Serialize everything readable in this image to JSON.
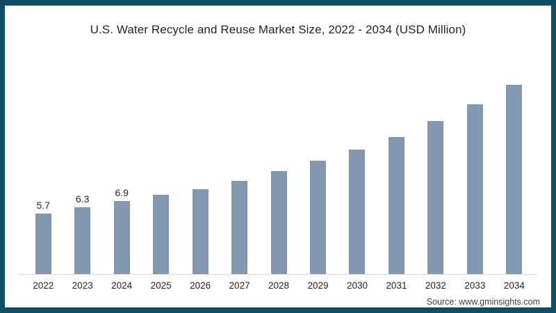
{
  "frame": {
    "border_color": "#0d4d66",
    "background": "#ffffff"
  },
  "chart_data": {
    "type": "bar",
    "title": "U.S. Water Recycle and Reuse Market Size, 2022 - 2034 (USD Million)",
    "source": "Source: www.gminsights.com",
    "categories": [
      "2022",
      "2023",
      "2024",
      "2025",
      "2026",
      "2027",
      "2028",
      "2029",
      "2030",
      "2031",
      "2032",
      "2033",
      "2034"
    ],
    "values": [
      5.7,
      6.3,
      6.9,
      7.5,
      8.0,
      8.8,
      9.7,
      10.7,
      11.7,
      12.9,
      14.4,
      16.0,
      17.8
    ],
    "bar_labels": [
      "5.7",
      "6.3",
      "6.9",
      null,
      null,
      null,
      null,
      null,
      null,
      null,
      null,
      null,
      null
    ],
    "bar_color": "#8497b0",
    "label_color": "#262626",
    "axis_line_color": "#d9d9d9",
    "xlabel": "",
    "ylabel": "",
    "ylim": [
      0,
      19
    ],
    "grid": false,
    "legend": false,
    "y_axis_visible": false
  }
}
